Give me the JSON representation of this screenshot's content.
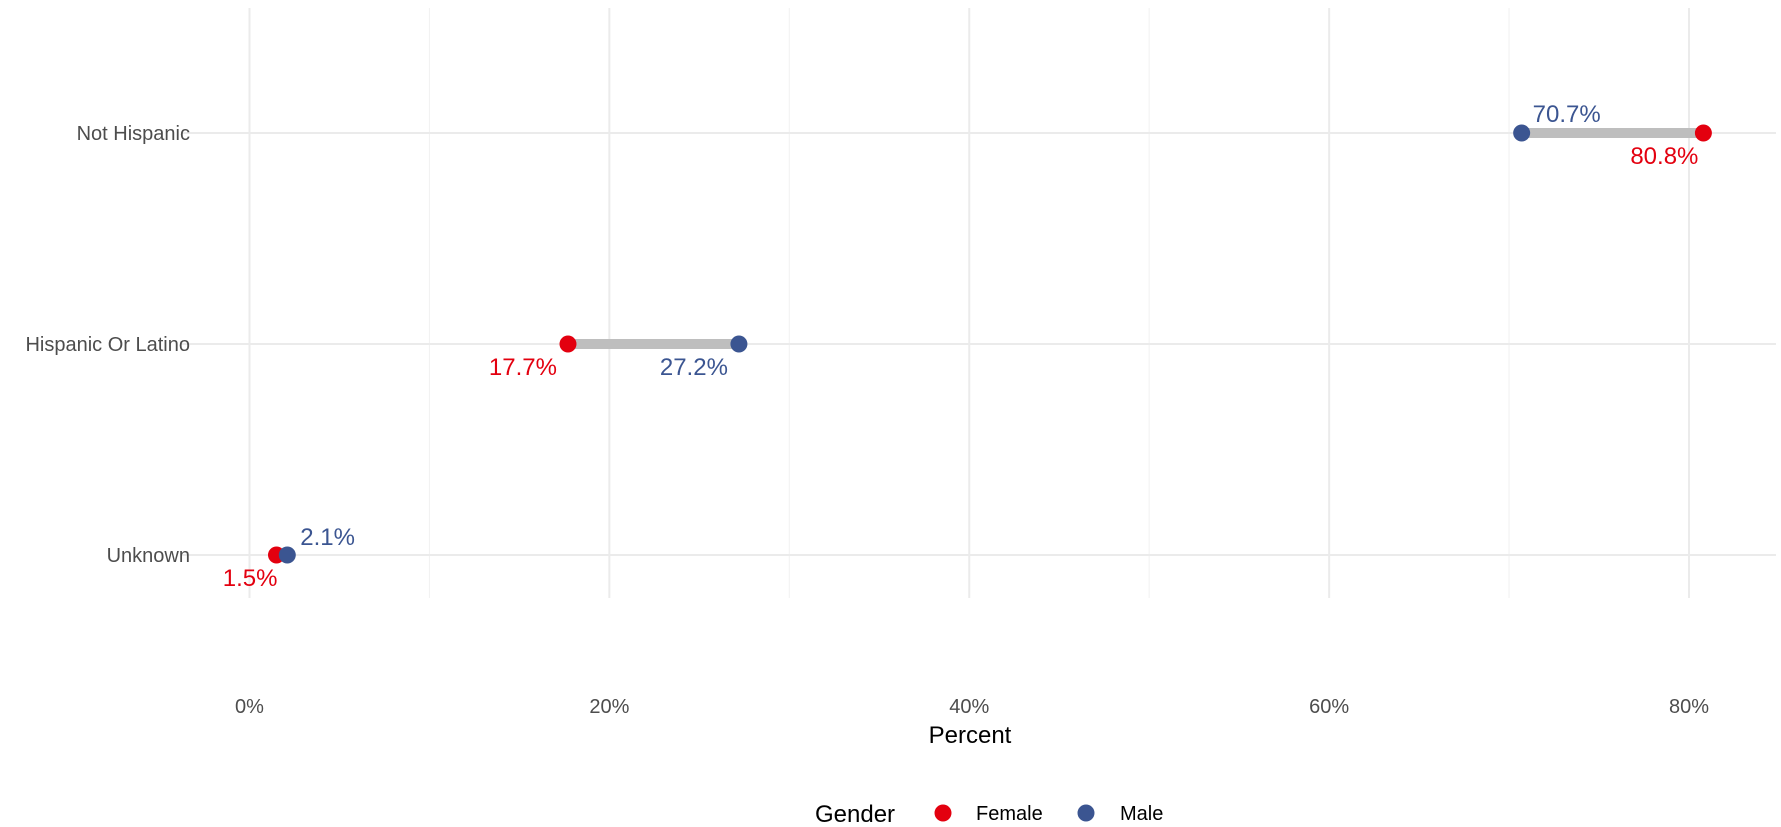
{
  "chart_data": {
    "type": "dumbbell",
    "xlabel": "Percent",
    "x_tick_labels": [
      "0%",
      "20%",
      "40%",
      "60%",
      "80%"
    ],
    "x_ticks": [
      0,
      20,
      40,
      60,
      80
    ],
    "xlim": [
      -2.1,
      83.8
    ],
    "categories": [
      "Not Hispanic",
      "Hispanic Or Latino",
      "Unknown"
    ],
    "series": [
      {
        "name": "Female",
        "color": "#e3000f",
        "values": [
          80.8,
          17.7,
          1.5
        ],
        "labels": [
          "80.8%",
          "17.7%",
          "1.5%"
        ]
      },
      {
        "name": "Male",
        "color": "#3b5591",
        "values": [
          70.7,
          27.2,
          2.1
        ],
        "labels": [
          "70.7%",
          "27.2%",
          "2.1%"
        ]
      }
    ],
    "connector_color": "#bebebe",
    "grid": true,
    "legend": {
      "title": "Gender",
      "position": "bottom",
      "items": [
        "Female",
        "Male"
      ]
    }
  }
}
